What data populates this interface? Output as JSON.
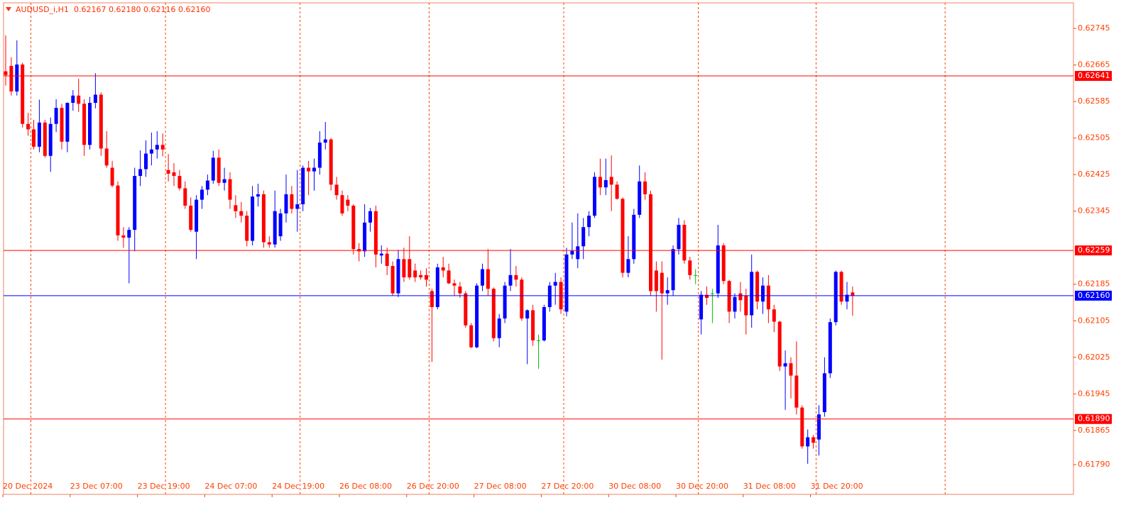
{
  "chart_data": {
    "type": "candlestick",
    "title": "AUDUSD_i,H1",
    "header_prices": "0.62167 0.62180 0.62116 0.62160",
    "bull_color": "#0000ff",
    "bear_color": "#ff0000",
    "doji_color": "#00c000",
    "ylim": [
      0.61725,
      0.62801
    ],
    "yticks": [
      0.62745,
      0.62665,
      0.62585,
      0.62505,
      0.62425,
      0.62345,
      0.62185,
      0.62105,
      0.62025,
      0.61945,
      0.61865,
      {
        "value": 0.6179,
        "label": "0.61790"
      }
    ],
    "xticks": [
      {
        "value": 0,
        "label": "20 Dec 2024"
      },
      {
        "value": 12,
        "label": "23 Dec 07:00"
      },
      {
        "value": 24,
        "label": "23 Dec 19:00"
      },
      {
        "value": 36,
        "label": "24 Dec 07:00"
      },
      {
        "value": 48,
        "label": "24 Dec 19:00"
      },
      {
        "value": 60,
        "label": "26 Dec 08:00"
      },
      {
        "value": 72,
        "label": "26 Dec 20:00"
      },
      {
        "value": 84,
        "label": "27 Dec 08:00"
      },
      {
        "value": 96,
        "label": "27 Dec 20:00"
      },
      {
        "value": 108,
        "label": "30 Dec 08:00"
      },
      {
        "value": 120,
        "label": "30 Dec 20:00"
      },
      {
        "value": 132,
        "label": "31 Dec 08:00"
      },
      {
        "value": 144,
        "label": "31 Dec 20:00"
      }
    ],
    "separators": [
      5,
      29,
      53,
      76,
      100,
      124,
      145,
      168
    ],
    "levels": [
      {
        "value": 0.62641,
        "color": "#ff0000"
      },
      {
        "value": 0.62259,
        "color": "#ff0000"
      },
      {
        "value": {
          "value": 0.6216,
          "label": "0.62160"
        },
        "color": "#0000ff"
      },
      {
        "value": {
          "value": 0.6189,
          "label": "0.61890"
        },
        "color": "#ff0000"
      }
    ],
    "candles": [
      [
        0.62651,
        0.6273,
        0.6262,
        0.62643
      ],
      [
        0.62663,
        0.62682,
        0.62598,
        0.62607
      ],
      [
        0.62607,
        0.62719,
        0.62598,
        0.62666
      ],
      [
        0.62666,
        0.6267,
        0.62528,
        0.62536
      ],
      [
        0.62536,
        0.6256,
        0.6251,
        0.62524
      ],
      [
        0.62524,
        0.62545,
        0.6248,
        0.62486
      ],
      [
        0.62486,
        0.62589,
        0.62474,
        0.62539
      ],
      [
        0.62539,
        0.62545,
        0.62462,
        0.62466
      ],
      [
        0.62466,
        0.6255,
        0.62431,
        0.62536
      ],
      [
        0.62536,
        0.6259,
        0.62518,
        0.62571
      ],
      [
        0.62571,
        0.6258,
        0.6248,
        0.62497
      ],
      [
        0.62497,
        0.62583,
        0.62474,
        0.62582
      ],
      [
        0.62582,
        0.6261,
        0.62565,
        0.62598
      ],
      [
        0.62598,
        0.62635,
        0.62562,
        0.6258
      ],
      [
        0.6258,
        0.6259,
        0.62466,
        0.6249
      ],
      [
        0.6249,
        0.62595,
        0.6248,
        0.62582
      ],
      [
        0.62582,
        0.62647,
        0.6257,
        0.626
      ],
      [
        0.626,
        0.62605,
        0.62466,
        0.62482
      ],
      [
        0.62482,
        0.6252,
        0.6244,
        0.62445
      ],
      [
        0.6244,
        0.62455,
        0.62397,
        0.62401
      ],
      [
        0.62401,
        0.6241,
        0.6228,
        0.62292
      ],
      [
        0.62292,
        0.6231,
        0.62265,
        0.62287
      ],
      [
        0.62287,
        0.6231,
        0.62187,
        0.62304
      ],
      [
        0.62304,
        0.6244,
        0.62257,
        0.62422
      ],
      [
        0.62422,
        0.62478,
        0.624,
        0.62437
      ],
      [
        0.62437,
        0.625,
        0.6242,
        0.62471
      ],
      [
        0.62471,
        0.62517,
        0.62445,
        0.6248
      ],
      [
        0.6248,
        0.6252,
        0.6246,
        0.6249
      ],
      [
        0.6249,
        0.62515,
        0.62465,
        0.6248
      ],
      [
        0.62435,
        0.6247,
        0.6241,
        0.62427
      ],
      [
        0.6243,
        0.6245,
        0.624,
        0.62422
      ],
      [
        0.62422,
        0.62435,
        0.6239,
        0.62395
      ],
      [
        0.62395,
        0.6241,
        0.6235,
        0.62357
      ],
      [
        0.62357,
        0.62375,
        0.623,
        0.62304
      ],
      [
        0.623,
        0.6238,
        0.6224,
        0.6237
      ],
      [
        0.6237,
        0.624,
        0.6235,
        0.62392
      ],
      [
        0.62392,
        0.62425,
        0.6238,
        0.62412
      ],
      [
        0.62412,
        0.62477,
        0.62405,
        0.62462
      ],
      [
        0.62462,
        0.6248,
        0.624,
        0.62407
      ],
      [
        0.62407,
        0.6244,
        0.6239,
        0.62415
      ],
      [
        0.62415,
        0.6243,
        0.6235,
        0.6237
      ],
      [
        0.62358,
        0.6238,
        0.6233,
        0.62345
      ],
      [
        0.62345,
        0.62365,
        0.6232,
        0.62335
      ],
      [
        0.62335,
        0.62345,
        0.62268,
        0.6228
      ],
      [
        0.6228,
        0.624,
        0.6227,
        0.62377
      ],
      [
        0.62377,
        0.62405,
        0.62355,
        0.62382
      ],
      [
        0.62382,
        0.6239,
        0.62265,
        0.62277
      ],
      [
        0.62277,
        0.6229,
        0.62265,
        0.62272
      ],
      [
        0.62272,
        0.6239,
        0.62265,
        0.62345
      ],
      [
        0.6229,
        0.6235,
        0.6228,
        0.6234
      ],
      [
        0.6234,
        0.62425,
        0.6232,
        0.62382
      ],
      [
        0.62382,
        0.624,
        0.6234,
        0.6235
      ],
      [
        0.6235,
        0.62435,
        0.623,
        0.6236
      ],
      [
        0.6236,
        0.62445,
        0.62345,
        0.6244
      ],
      [
        0.6244,
        0.62455,
        0.6238,
        0.62432
      ],
      [
        0.62432,
        0.6246,
        0.6239,
        0.6244
      ],
      [
        0.6244,
        0.6252,
        0.62425,
        0.62495
      ],
      [
        0.62495,
        0.6254,
        0.6248,
        0.62502
      ],
      [
        0.62502,
        0.62505,
        0.6239,
        0.62403
      ],
      [
        0.62403,
        0.6242,
        0.6237,
        0.6238
      ],
      [
        0.6238,
        0.6239,
        0.62335,
        0.6234
      ],
      [
        0.6237,
        0.6238,
        0.62345,
        0.62357
      ],
      [
        0.62357,
        0.6236,
        0.6225,
        0.62262
      ],
      [
        0.62262,
        0.62275,
        0.62235,
        0.62257
      ],
      [
        0.62257,
        0.6236,
        0.62245,
        0.6232
      ],
      [
        0.6232,
        0.62352,
        0.623,
        0.62345
      ],
      [
        0.62345,
        0.62357,
        0.62222,
        0.6225
      ],
      [
        0.62248,
        0.6227,
        0.6223,
        0.62252
      ],
      [
        0.62252,
        0.62265,
        0.62205,
        0.62225
      ],
      [
        0.62225,
        0.62235,
        0.6216,
        0.62165
      ],
      [
        0.62165,
        0.6226,
        0.62157,
        0.6224
      ],
      [
        0.6224,
        0.62265,
        0.6219,
        0.622
      ],
      [
        0.6224,
        0.6229,
        0.62195,
        0.622
      ],
      [
        0.62215,
        0.6223,
        0.6219,
        0.622
      ],
      [
        0.62205,
        0.62215,
        0.62195,
        0.622
      ],
      [
        0.62205,
        0.6222,
        0.6218,
        0.62195
      ],
      [
        0.6217,
        0.62175,
        0.62015,
        0.62135
      ],
      [
        0.62135,
        0.6223,
        0.6213,
        0.62222
      ],
      [
        0.62222,
        0.62245,
        0.622,
        0.62215
      ],
      [
        0.62215,
        0.6223,
        0.62185,
        0.62187
      ],
      [
        0.62187,
        0.62195,
        0.6216,
        0.62182
      ],
      [
        0.6218,
        0.6219,
        0.62155,
        0.62165
      ],
      [
        0.62165,
        0.6217,
        0.6209,
        0.62095
      ],
      [
        0.62095,
        0.621,
        0.62045,
        0.62047
      ],
      [
        0.62047,
        0.62187,
        0.62045,
        0.62182
      ],
      [
        0.62182,
        0.6223,
        0.6217,
        0.62218
      ],
      [
        0.62218,
        0.62262,
        0.6216,
        0.62175
      ],
      [
        0.62175,
        0.62178,
        0.6206,
        0.62067
      ],
      [
        0.62067,
        0.6212,
        0.62047,
        0.6211
      ],
      [
        0.6211,
        0.6219,
        0.621,
        0.62182
      ],
      [
        0.62182,
        0.62262,
        0.6217,
        0.62205
      ],
      [
        0.62205,
        0.62225,
        0.6218,
        0.62195
      ],
      [
        0.62195,
        0.622,
        0.62105,
        0.6211
      ],
      [
        0.6211,
        0.6213,
        0.6201,
        0.62128
      ],
      [
        0.62128,
        0.6214,
        0.6205,
        0.62062
      ],
      [
        0.62062,
        0.62075,
        0.62,
        0.62062
      ],
      [
        0.62062,
        0.6214,
        0.6206,
        0.62135
      ],
      [
        0.62135,
        0.6219,
        0.62125,
        0.62182
      ],
      [
        0.62182,
        0.6221,
        0.6214,
        0.6219
      ],
      [
        0.6219,
        0.622,
        0.6212,
        0.6213
      ],
      [
        0.62125,
        0.62265,
        0.62115,
        0.6225
      ],
      [
        0.6225,
        0.6232,
        0.6224,
        0.62258
      ],
      [
        0.6224,
        0.6234,
        0.6222,
        0.62268
      ],
      [
        0.62268,
        0.6233,
        0.6224,
        0.6231
      ],
      [
        0.6231,
        0.62345,
        0.6229,
        0.62335
      ],
      [
        0.62335,
        0.6243,
        0.6233,
        0.6242
      ],
      [
        0.6242,
        0.6246,
        0.6238,
        0.62397
      ],
      [
        0.62397,
        0.6246,
        0.6238,
        0.62413
      ],
      [
        0.6242,
        0.62467,
        0.62345,
        0.62403
      ],
      [
        0.62403,
        0.6241,
        0.6237,
        0.62372
      ],
      [
        0.62372,
        0.62375,
        0.622,
        0.6221
      ],
      [
        0.6221,
        0.6229,
        0.622,
        0.6224
      ],
      [
        0.6224,
        0.6235,
        0.6223,
        0.62337
      ],
      [
        0.62337,
        0.62445,
        0.6233,
        0.6241
      ],
      [
        0.6241,
        0.6243,
        0.6237,
        0.62382
      ],
      [
        0.62382,
        0.6239,
        0.6216,
        0.6217
      ],
      [
        0.62215,
        0.62235,
        0.62125,
        0.6217
      ],
      [
        0.6221,
        0.62235,
        0.6202,
        0.62165
      ],
      [
        0.62165,
        0.622,
        0.6214,
        0.62172
      ],
      [
        0.62172,
        0.6227,
        0.6216,
        0.62262
      ],
      [
        0.62262,
        0.6233,
        0.6225,
        0.62315
      ],
      [
        0.62315,
        0.62325,
        0.6223,
        0.62237
      ],
      [
        0.62237,
        0.62245,
        0.62195,
        0.62205
      ],
      [
        0.62205,
        0.62218,
        0.62185,
        0.62205
      ],
      [
        0.62108,
        0.6217,
        0.62075,
        0.62162
      ],
      [
        0.62162,
        0.6218,
        0.6214,
        0.62155
      ],
      [
        0.62165,
        0.62175,
        0.621,
        0.62165
      ],
      [
        0.62165,
        0.62315,
        0.62155,
        0.6227
      ],
      [
        0.6227,
        0.62275,
        0.62185,
        0.62192
      ],
      [
        0.62192,
        0.62195,
        0.621,
        0.62125
      ],
      [
        0.62125,
        0.62165,
        0.6211,
        0.62157
      ],
      [
        0.62165,
        0.6219,
        0.62125,
        0.6215
      ],
      [
        0.6216,
        0.62175,
        0.62075,
        0.62117
      ],
      [
        0.62117,
        0.6225,
        0.6209,
        0.62212
      ],
      [
        0.62212,
        0.62215,
        0.6213,
        0.62147
      ],
      [
        0.62147,
        0.622,
        0.6212,
        0.62182
      ],
      [
        0.62182,
        0.62205,
        0.621,
        0.6213
      ],
      [
        0.6213,
        0.6214,
        0.6208,
        0.62103
      ],
      [
        0.62103,
        0.62105,
        0.61995,
        0.62005
      ],
      [
        0.62005,
        0.6204,
        0.6191,
        0.62012
      ],
      [
        0.62012,
        0.62025,
        0.61935,
        0.61985
      ],
      [
        0.61985,
        0.6206,
        0.619,
        0.61915
      ],
      [
        0.61915,
        0.6192,
        0.61825,
        0.6183
      ],
      [
        0.6183,
        0.61867,
        0.61792,
        0.6185
      ],
      [
        0.6185,
        0.61855,
        0.61825,
        0.61838
      ],
      [
        0.61845,
        0.6192,
        0.6181,
        0.619
      ],
      [
        0.61905,
        0.62025,
        0.61895,
        0.6199
      ],
      [
        0.6199,
        0.6211,
        0.6198,
        0.62102
      ],
      [
        0.62102,
        0.62215,
        0.62095,
        0.62212
      ],
      [
        0.62212,
        0.62215,
        0.6214,
        0.62147
      ],
      [
        0.62147,
        0.6219,
        0.6213,
        0.62162
      ],
      [
        0.62167,
        0.6218,
        0.62116,
        0.6216
      ]
    ]
  }
}
